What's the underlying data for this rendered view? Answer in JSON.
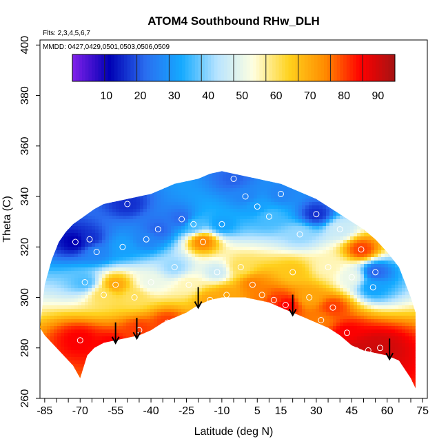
{
  "chart_data": {
    "type": "heatmap",
    "title": "ATOM4 Southbound RHw_DLH",
    "notes": [
      "Flts: 2,3,4,5,6,7",
      "MMDD: 0427,0429,0501,0503,0506,0509"
    ],
    "xlabel": "Latitude (deg N)",
    "ylabel": "Theta (C)",
    "xlim": [
      -87,
      77
    ],
    "ylim": [
      260,
      402
    ],
    "x_ticks": [
      -85,
      -70,
      -55,
      -40,
      -25,
      -10,
      5,
      15,
      30,
      45,
      60,
      75
    ],
    "y_ticks": [
      260,
      280,
      300,
      320,
      340,
      360,
      380,
      400
    ],
    "colorbar": {
      "range": [
        0,
        95
      ],
      "ticks": [
        10,
        20,
        30,
        40,
        50,
        60,
        70,
        80,
        90
      ],
      "colors": [
        "#7b1fe8",
        "#0000b4",
        "#2a6ef0",
        "#14aaff",
        "#b8e4ff",
        "#ffffe0",
        "#ffd21e",
        "#ff8c00",
        "#ff0000",
        "#a01414"
      ]
    },
    "domain_boundary": {
      "lat": [
        -87,
        -85,
        -82,
        -79,
        -76,
        -73,
        -70,
        -67,
        -64,
        -60,
        -55,
        -50,
        -45,
        -40,
        -35,
        -30,
        -25,
        -20,
        -15,
        -10,
        -5,
        0,
        5,
        10,
        15,
        20,
        25,
        30,
        35,
        40,
        45,
        50,
        55,
        60,
        65,
        70,
        72
      ],
      "top": [
        288,
        305,
        315,
        322,
        326,
        329,
        331,
        333,
        335,
        337,
        338,
        339,
        340,
        341,
        343,
        345,
        346,
        347,
        349,
        350,
        349,
        348,
        347,
        346,
        345,
        343,
        341,
        339,
        336,
        333,
        330,
        327,
        323,
        318,
        312,
        300,
        294
      ],
      "bottom": [
        288,
        285,
        282,
        279,
        276,
        273,
        268,
        277,
        280,
        282,
        283,
        284,
        285,
        287,
        290,
        292,
        294,
        297,
        299,
        300,
        300,
        300,
        299,
        298,
        296,
        294,
        292,
        290,
        288,
        285,
        281,
        279,
        278,
        277,
        275,
        268,
        264
      ]
    },
    "arrows_lat": [
      -55,
      -46,
      -20,
      20,
      61
    ],
    "observations": [
      {
        "lat": -72,
        "theta": 322,
        "rh": 10
      },
      {
        "lat": -70,
        "theta": 283,
        "rh": 85
      },
      {
        "lat": -68,
        "theta": 306,
        "rh": 35
      },
      {
        "lat": -66,
        "theta": 323,
        "rh": 15
      },
      {
        "lat": -63,
        "theta": 318,
        "rh": 25
      },
      {
        "lat": -60,
        "theta": 301,
        "rh": 60
      },
      {
        "lat": -57,
        "theta": 281,
        "rh": 85
      },
      {
        "lat": -55,
        "theta": 305,
        "rh": 70
      },
      {
        "lat": -52,
        "theta": 320,
        "rh": 30
      },
      {
        "lat": -50,
        "theta": 337,
        "rh": 15
      },
      {
        "lat": -47,
        "theta": 300,
        "rh": 60
      },
      {
        "lat": -45,
        "theta": 287,
        "rh": 80
      },
      {
        "lat": -42,
        "theta": 323,
        "rh": 25
      },
      {
        "lat": -40,
        "theta": 306,
        "rh": 50
      },
      {
        "lat": -37,
        "theta": 327,
        "rh": 20
      },
      {
        "lat": -33,
        "theta": 290,
        "rh": 80
      },
      {
        "lat": -30,
        "theta": 312,
        "rh": 40
      },
      {
        "lat": -27,
        "theta": 331,
        "rh": 20
      },
      {
        "lat": -24,
        "theta": 305,
        "rh": 55
      },
      {
        "lat": -22,
        "theta": 329,
        "rh": 35
      },
      {
        "lat": -18,
        "theta": 322,
        "rh": 75
      },
      {
        "lat": -15,
        "theta": 299,
        "rh": 70
      },
      {
        "lat": -12,
        "theta": 310,
        "rh": 45
      },
      {
        "lat": -10,
        "theta": 329,
        "rh": 30
      },
      {
        "lat": -8,
        "theta": 301,
        "rh": 70
      },
      {
        "lat": -5,
        "theta": 347,
        "rh": 20
      },
      {
        "lat": -2,
        "theta": 312,
        "rh": 60
      },
      {
        "lat": 0,
        "theta": 340,
        "rh": 25
      },
      {
        "lat": 3,
        "theta": 305,
        "rh": 75
      },
      {
        "lat": 5,
        "theta": 336,
        "rh": 30
      },
      {
        "lat": 7,
        "theta": 301,
        "rh": 75
      },
      {
        "lat": 10,
        "theta": 332,
        "rh": 35
      },
      {
        "lat": 12,
        "theta": 299,
        "rh": 80
      },
      {
        "lat": 15,
        "theta": 341,
        "rh": 25
      },
      {
        "lat": 17,
        "theta": 297,
        "rh": 85
      },
      {
        "lat": 20,
        "theta": 310,
        "rh": 65
      },
      {
        "lat": 23,
        "theta": 325,
        "rh": 40
      },
      {
        "lat": 27,
        "theta": 300,
        "rh": 70
      },
      {
        "lat": 30,
        "theta": 333,
        "rh": 15
      },
      {
        "lat": 32,
        "theta": 291,
        "rh": 75
      },
      {
        "lat": 35,
        "theta": 312,
        "rh": 55
      },
      {
        "lat": 37,
        "theta": 296,
        "rh": 80
      },
      {
        "lat": 40,
        "theta": 327,
        "rh": 45
      },
      {
        "lat": 43,
        "theta": 286,
        "rh": 85
      },
      {
        "lat": 45,
        "theta": 308,
        "rh": 50
      },
      {
        "lat": 47,
        "theta": 279,
        "rh": 90
      },
      {
        "lat": 49,
        "theta": 319,
        "rh": 80
      },
      {
        "lat": 52,
        "theta": 279,
        "rh": 90
      },
      {
        "lat": 54,
        "theta": 304,
        "rh": 30
      },
      {
        "lat": 55,
        "theta": 310,
        "rh": 20
      },
      {
        "lat": 57,
        "theta": 280,
        "rh": 90
      }
    ]
  }
}
